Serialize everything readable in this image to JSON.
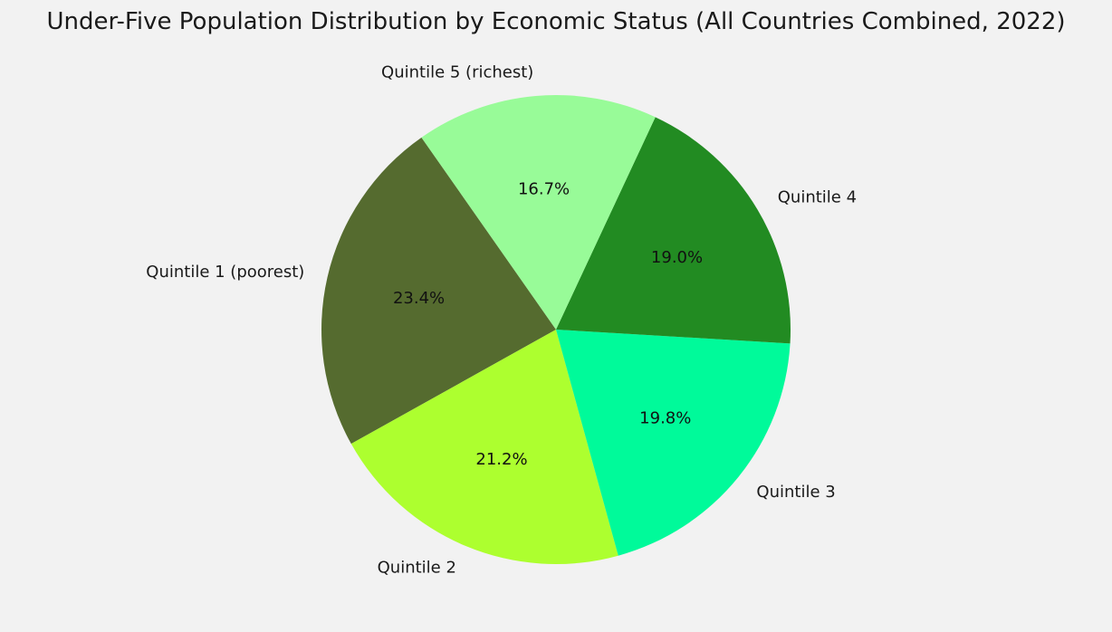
{
  "chart_data": {
    "type": "pie",
    "title": "Under-Five Population Distribution by Economic Status (All Countries Combined, 2022)",
    "start_angle_deg": 125,
    "direction": "counterclockwise",
    "slices": [
      {
        "label": "Quintile 1 (poorest)",
        "value": 23.4,
        "pct_label": "23.4%",
        "color": "#556b2f"
      },
      {
        "label": "Quintile 2",
        "value": 21.2,
        "pct_label": "21.2%",
        "color": "#adff2f"
      },
      {
        "label": "Quintile 3",
        "value": 19.8,
        "pct_label": "19.8%",
        "color": "#00fa9a"
      },
      {
        "label": "Quintile 4",
        "value": 19.0,
        "pct_label": "19.0%",
        "color": "#228b22"
      },
      {
        "label": "Quintile 5 (richest)",
        "value": 16.7,
        "pct_label": "16.7%",
        "color": "#98fb98"
      }
    ]
  },
  "colors": {
    "background": "#f2f2f2",
    "text": "#1a1a1a"
  }
}
